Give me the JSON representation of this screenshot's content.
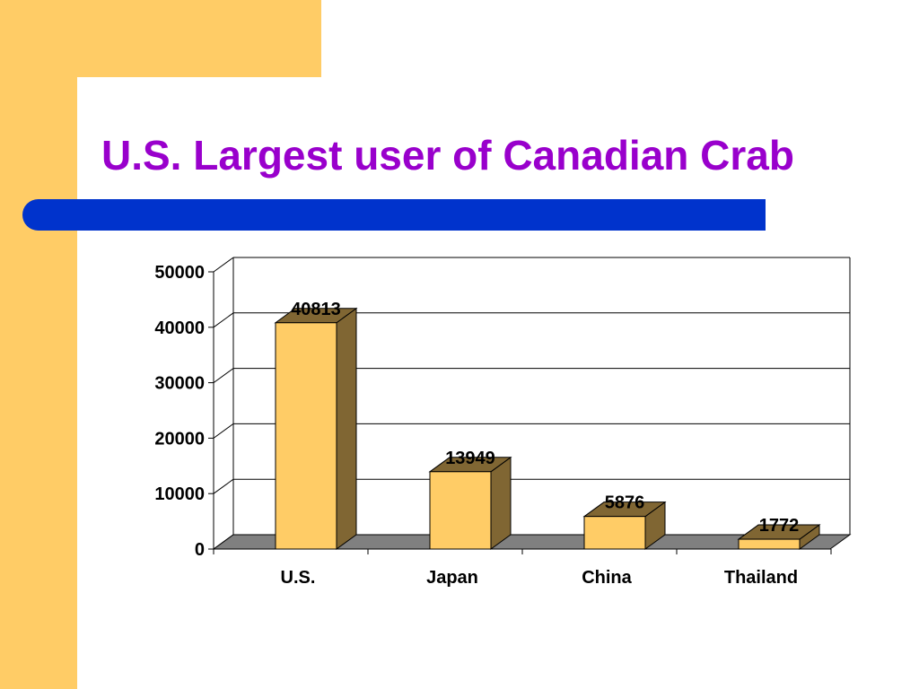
{
  "slide": {
    "title": "U.S. Largest user of Canadian Crab",
    "colors": {
      "background_band": "#ffcc66",
      "title": "#9900cc",
      "accent_bar": "#0033cc",
      "bar_front": "#ffcc66",
      "bar_side": "#806633",
      "floor": "#808080"
    }
  },
  "chart_data": {
    "type": "bar",
    "categories": [
      "U.S.",
      "Japan",
      "China",
      "Thailand"
    ],
    "values": [
      40813,
      13949,
      5876,
      1772
    ],
    "data_labels": [
      "40813",
      "13949",
      "5876",
      "1772"
    ],
    "ylim": [
      0,
      50000
    ],
    "yticks": [
      0,
      10000,
      20000,
      30000,
      40000,
      50000
    ],
    "ytick_labels": [
      "0",
      "10000",
      "20000",
      "30000",
      "40000",
      "50000"
    ],
    "grid": true,
    "legend": "none",
    "style": "3d-column"
  }
}
